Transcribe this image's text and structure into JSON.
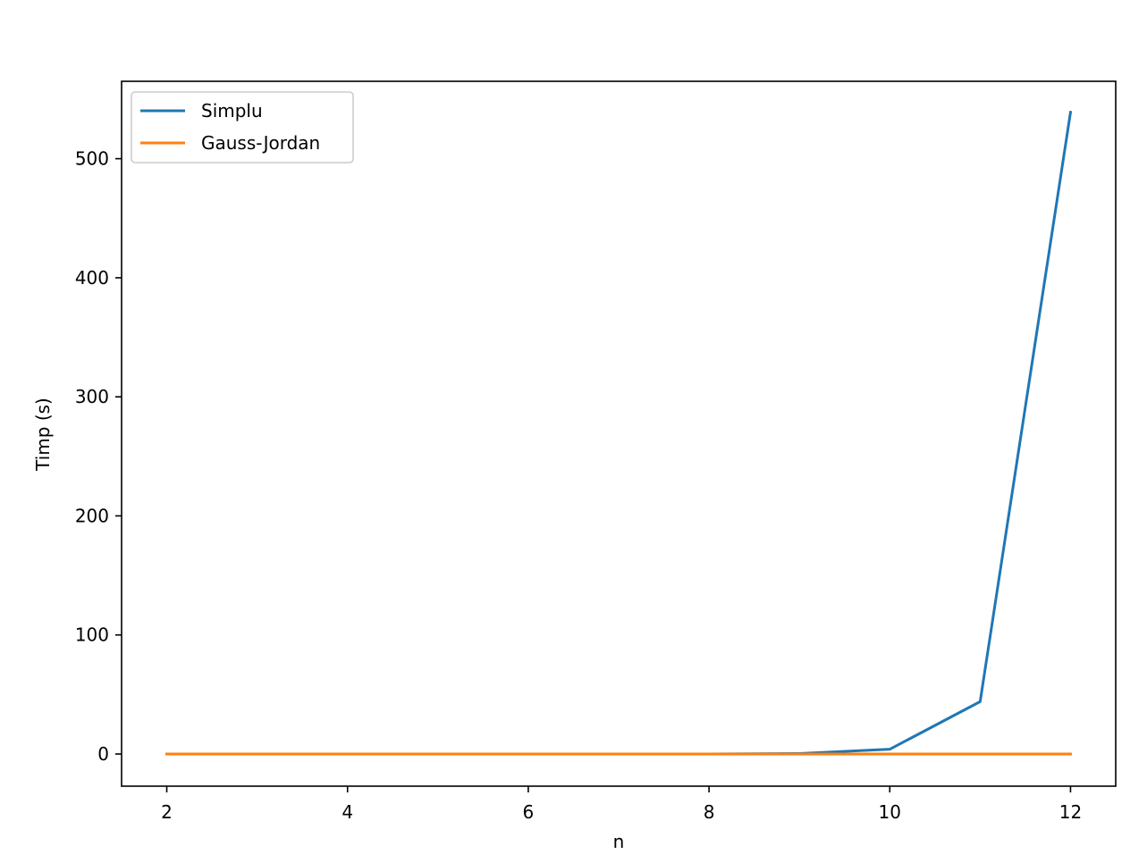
{
  "chart_data": {
    "type": "line",
    "title": "",
    "xlabel": "n",
    "ylabel": "Timp (s)",
    "xlim": [
      1.5,
      12.5
    ],
    "ylim": [
      -27,
      565
    ],
    "xticks": [
      2,
      4,
      6,
      8,
      10,
      12
    ],
    "yticks": [
      0,
      100,
      200,
      300,
      400,
      500
    ],
    "grid": false,
    "legend_position": "top-left",
    "x": [
      2,
      3,
      4,
      5,
      6,
      7,
      8,
      9,
      10,
      11,
      12
    ],
    "series": [
      {
        "name": "Simplu",
        "color": "#1f77b4",
        "values": [
          0,
          0,
          0,
          0,
          0,
          0,
          0.05,
          0.4,
          4,
          44,
          539
        ]
      },
      {
        "name": "Gauss-Jordan",
        "color": "#ff7f0e",
        "values": [
          0,
          0,
          0,
          0,
          0,
          0,
          0,
          0,
          0,
          0,
          0
        ]
      }
    ]
  }
}
